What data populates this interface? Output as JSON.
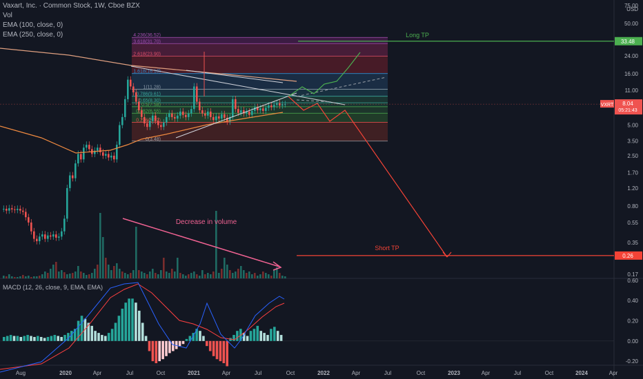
{
  "header": {
    "title": "Vaxart, Inc. · Common Stock, 1W, Cboe BZX",
    "indicators": [
      "Vol",
      "EMA (100, close, 0)",
      "EMA (250, close, 0)"
    ]
  },
  "price_axis": {
    "currency": "USD",
    "ticks": [
      "75.00",
      "50.00",
      "34.00",
      "24.00",
      "16.00",
      "11.00",
      "8.00",
      "5.00",
      "3.50",
      "2.50",
      "1.70",
      "1.20",
      "0.80",
      "0.55",
      "0.35",
      "0.26",
      "0.17"
    ],
    "tick_values": [
      75,
      50,
      34,
      24,
      16,
      11,
      8,
      5,
      3.5,
      2.5,
      1.7,
      1.2,
      0.8,
      0.55,
      0.35,
      0.26,
      0.17
    ],
    "scale": "log",
    "range": [
      0.155,
      80
    ]
  },
  "badges": {
    "long_tp": "33.48",
    "ticker": "VXRT",
    "last": "8.04",
    "countdown": "05:21:43",
    "short_tp": "0.26"
  },
  "annotations": {
    "long_tp": "Long TP",
    "short_tp": "Short TP",
    "volume_note": "Decrease in volume"
  },
  "fib_labels": [
    {
      "text": "4.236(36.52)",
      "value": 36.52
    },
    {
      "text": "3.618(31.70)",
      "value": 31.7
    },
    {
      "text": "2.618(23.90)",
      "value": 23.9
    },
    {
      "text": "1.618(16.10)",
      "value": 16.1
    },
    {
      "text": "1(11.28)",
      "value": 11.28
    },
    {
      "text": "0.786(9.61)",
      "value": 9.61
    },
    {
      "text": "0.65(8.30)",
      "value": 8.3
    },
    {
      "text": "0.5(7.58)",
      "value": 7.58
    },
    {
      "text": "0.382(6.55)",
      "value": 6.55
    },
    {
      "text": "0.236(5.32)",
      "value": 5.32
    },
    {
      "text": "0(3.48)",
      "value": 3.48
    }
  ],
  "time_axis": {
    "labels": [
      "Aug",
      "2020",
      "Apr",
      "Jul",
      "Oct",
      "2021",
      "Apr",
      "Jul",
      "Oct",
      "2022",
      "Apr",
      "Jul",
      "Oct",
      "2023",
      "Apr",
      "Jul",
      "Oct",
      "2024",
      "Apr"
    ]
  },
  "macd": {
    "title": "MACD (12, 26, close, 9, EMA, EMA)",
    "ticks": [
      "0.60",
      "0.40",
      "0.20",
      "0.00",
      "-0.20"
    ],
    "tick_values": [
      0.6,
      0.4,
      0.2,
      0.0,
      -0.2
    ],
    "range": [
      -0.24,
      0.62
    ]
  },
  "colors": {
    "background": "#131722",
    "up": "#26a69a",
    "down": "#ef5350",
    "long_tp": "#4caf50",
    "short_tp": "#f44336",
    "ema100": "#e0a080",
    "ema250": "#f08a40",
    "macd_line": "#2962ff",
    "signal_line": "#ff4040"
  },
  "chart_data": {
    "type": "candlestick",
    "title": "Vaxart, Inc. · Common Stock, 1W, Cboe BZX",
    "y_scale": "log",
    "y_range": [
      0.155,
      80
    ],
    "last_price": 8.04,
    "long_target": 33.48,
    "short_target": 0.26,
    "fib_levels": [
      36.52,
      31.7,
      23.9,
      16.1,
      11.28,
      9.61,
      8.3,
      7.58,
      6.55,
      5.32,
      3.48
    ],
    "close_series_approx": [
      {
        "date": "2019-08",
        "close": 0.75
      },
      {
        "date": "2019-10",
        "close": 0.55
      },
      {
        "date": "2019-11",
        "close": 0.36
      },
      {
        "date": "2019-12",
        "close": 0.42
      },
      {
        "date": "2020-01",
        "close": 0.4
      },
      {
        "date": "2020-02",
        "close": 1.5
      },
      {
        "date": "2020-03",
        "close": 2.2
      },
      {
        "date": "2020-04",
        "close": 2.6
      },
      {
        "date": "2020-05",
        "close": 2.6
      },
      {
        "date": "2020-06",
        "close": 5.0
      },
      {
        "date": "2020-07",
        "close": 14.0
      },
      {
        "date": "2020-08",
        "close": 8.5
      },
      {
        "date": "2020-09",
        "close": 6.0
      },
      {
        "date": "2020-10",
        "close": 6.5
      },
      {
        "date": "2020-11",
        "close": 6.0
      },
      {
        "date": "2020-12",
        "close": 6.5
      },
      {
        "date": "2021-01",
        "close": 7.0
      },
      {
        "date": "2021-02",
        "close": 9.5
      },
      {
        "date": "2021-03",
        "close": 6.5
      },
      {
        "date": "2021-04",
        "close": 5.8
      },
      {
        "date": "2021-05",
        "close": 7.0
      },
      {
        "date": "2021-06",
        "close": 7.5
      },
      {
        "date": "2021-07",
        "close": 7.5
      },
      {
        "date": "2021-08",
        "close": 8.0
      },
      {
        "date": "2021-09",
        "close": 8.04
      }
    ],
    "projections": {
      "long": [
        [
          "2021-09",
          8.04
        ],
        [
          "2021-10",
          10.0
        ],
        [
          "2021-11",
          8.5
        ],
        [
          "2021-12",
          10.0
        ],
        [
          "2022-01",
          9.0
        ],
        [
          "2022-02",
          11.5
        ],
        [
          "2022-03",
          16.0
        ],
        [
          "2022-04",
          14.0
        ],
        [
          "2022-05",
          33.48
        ]
      ],
      "short": [
        [
          "2021-09",
          8.04
        ],
        [
          "2021-10",
          6.5
        ],
        [
          "2021-11",
          7.5
        ],
        [
          "2021-12",
          5.5
        ],
        [
          "2022-01",
          6.5
        ],
        [
          "2022-11",
          0.26
        ]
      ]
    },
    "xlabel": "",
    "ylabel": ""
  }
}
